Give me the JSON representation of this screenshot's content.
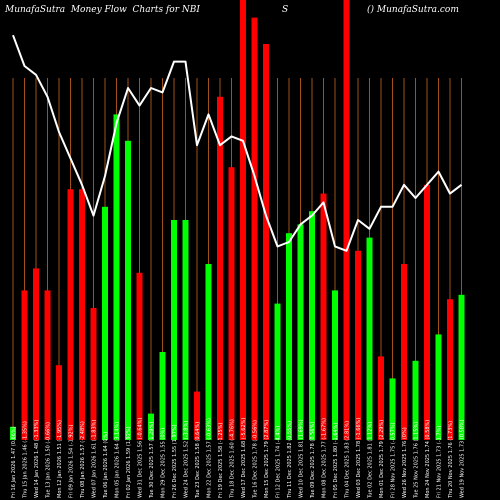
{
  "header": {
    "title": "MunafaSutra  Money Flow  Charts for NBI",
    "symbol": "S",
    "brand": "() MunafaSutra.com"
  },
  "colors": {
    "background": "#000000",
    "grid": "#a0521a",
    "up": "#00ff00",
    "down": "#ff0000",
    "line": "#ffffff"
  },
  "chart_data": {
    "type": "bar",
    "title": "MunafaSutra  Money Flow  Charts for NBI",
    "categories": [
      "Fri 16 Jan 2026 1.47 (0.86%)",
      "Thu 15 Jan 2026 1.46 (-1.35%)",
      "Wed 14 Jan 2026 1.48 (-1.33%)",
      "Tue 13 Jan 2026 1.50 (-0.66%)",
      "Mon 12 Jan 2026 1.51 (-1.95%)",
      "Fri 09 Jan 2026 1.54 (-1.92%)",
      "Thu 08 Jan 2026 1.57 (-2.48%)",
      "Wed 07 Jan 2026 1.61 (-1.83%)",
      "Tue 06 Jan 2026 1.64 (0%)",
      "Mon 05 Jan 2026 1.64 (3.14%)",
      "Fri 02 Jan 2026 1.59 (1.92%)",
      "Wed 31 Dec 2025 1.56 (-0.64%)",
      "Tue 30 Dec 2025 1.57 (1.29%)",
      "Mon 29 Dec 2025 1.55 (0%)",
      "Fri 26 Dec 2025 1.55 (1.97%)",
      "Wed 24 Dec 2025 1.52 (-3.8%)",
      "Tue 23 Dec 2025 1.58 (0.64%)",
      "Mon 22 Dec 2025 1.57 (-0.63%)",
      "Fri 19 Dec 2025 1.58 (-1.25%)",
      "Thu 18 Dec 2025 1.60 (-4.76%)",
      "Wed 17 Dec 2025 1.68 (-5.62%)",
      "Tue 16 Dec 2025 1.78 (-0.56%)",
      "Mon 15 Dec 2025 1.79 (2.87%)",
      "Fri 12 Dec 2025 1.74 (-4.4%)",
      "Thu 11 Dec 2025 1.82 (0.55%)",
      "Wed 10 Dec 2025 1.81 (1.69%)",
      "Tue 09 Dec 2025 1.78 (0.56%)",
      "Mon 08 Dec 2025 1.77 (-1.67%)",
      "Fri 05 Dec 2025 1.80 (-1.64%)",
      "Thu 04 Dec 2025 1.83 (2.81%)",
      "Wed 03 Dec 2025 1.78 (-1.66%)",
      "Tue 02 Dec 2025 1.81 (1.12%)",
      "Mon 01 Dec 2025 1.79 (2.29%)",
      "Fri 28 Nov 2025 1.75 (-0.57%)",
      "Wed 26 Nov 2025 1.76 (0%)",
      "Tue 25 Nov 2025 1.76 (1.15%)",
      "Mon 24 Nov 2025 1.74 (0.58%)",
      "Fri 21 Nov 2025 1.73 (-1.7%)",
      "Thu 20 Nov 2025 1.76 (1.73%)",
      "Wed 19 Nov 2025 1.73 (0.58%)"
    ],
    "directions": [
      "up",
      "down",
      "down",
      "down",
      "down",
      "down",
      "down",
      "down",
      "up",
      "up",
      "up",
      "down",
      "up",
      "up",
      "up",
      "up",
      "down",
      "up",
      "down",
      "down",
      "down",
      "down",
      "down",
      "up",
      "up",
      "up",
      "up",
      "down",
      "up",
      "down",
      "down",
      "up",
      "down",
      "up",
      "down",
      "up",
      "down",
      "up",
      "down",
      "up"
    ],
    "series": [
      {
        "type": "bar",
        "values": [
          3,
          34,
          39,
          34,
          17,
          57,
          57,
          30,
          53,
          74,
          68,
          38,
          6,
          20,
          50,
          50,
          11,
          40,
          78,
          62,
          100,
          96,
          90,
          31,
          47,
          49,
          52,
          56,
          34,
          100,
          43,
          46,
          19,
          14,
          40,
          18,
          58,
          24,
          32,
          33
        ]
      },
      {
        "type": "line",
        "values": [
          92,
          85,
          83,
          78,
          70,
          64,
          58,
          51,
          60,
          72,
          80,
          76,
          80,
          79,
          86,
          86,
          67,
          74,
          67,
          69,
          68,
          60,
          51,
          44,
          45,
          49,
          51,
          54,
          44,
          43,
          50,
          48,
          53,
          53,
          58,
          55,
          58,
          61,
          56,
          58
        ]
      }
    ],
    "xlabel": "",
    "ylabel": "",
    "ylim": [
      0,
      100
    ],
    "grid": "vertical",
    "legend": "none"
  }
}
